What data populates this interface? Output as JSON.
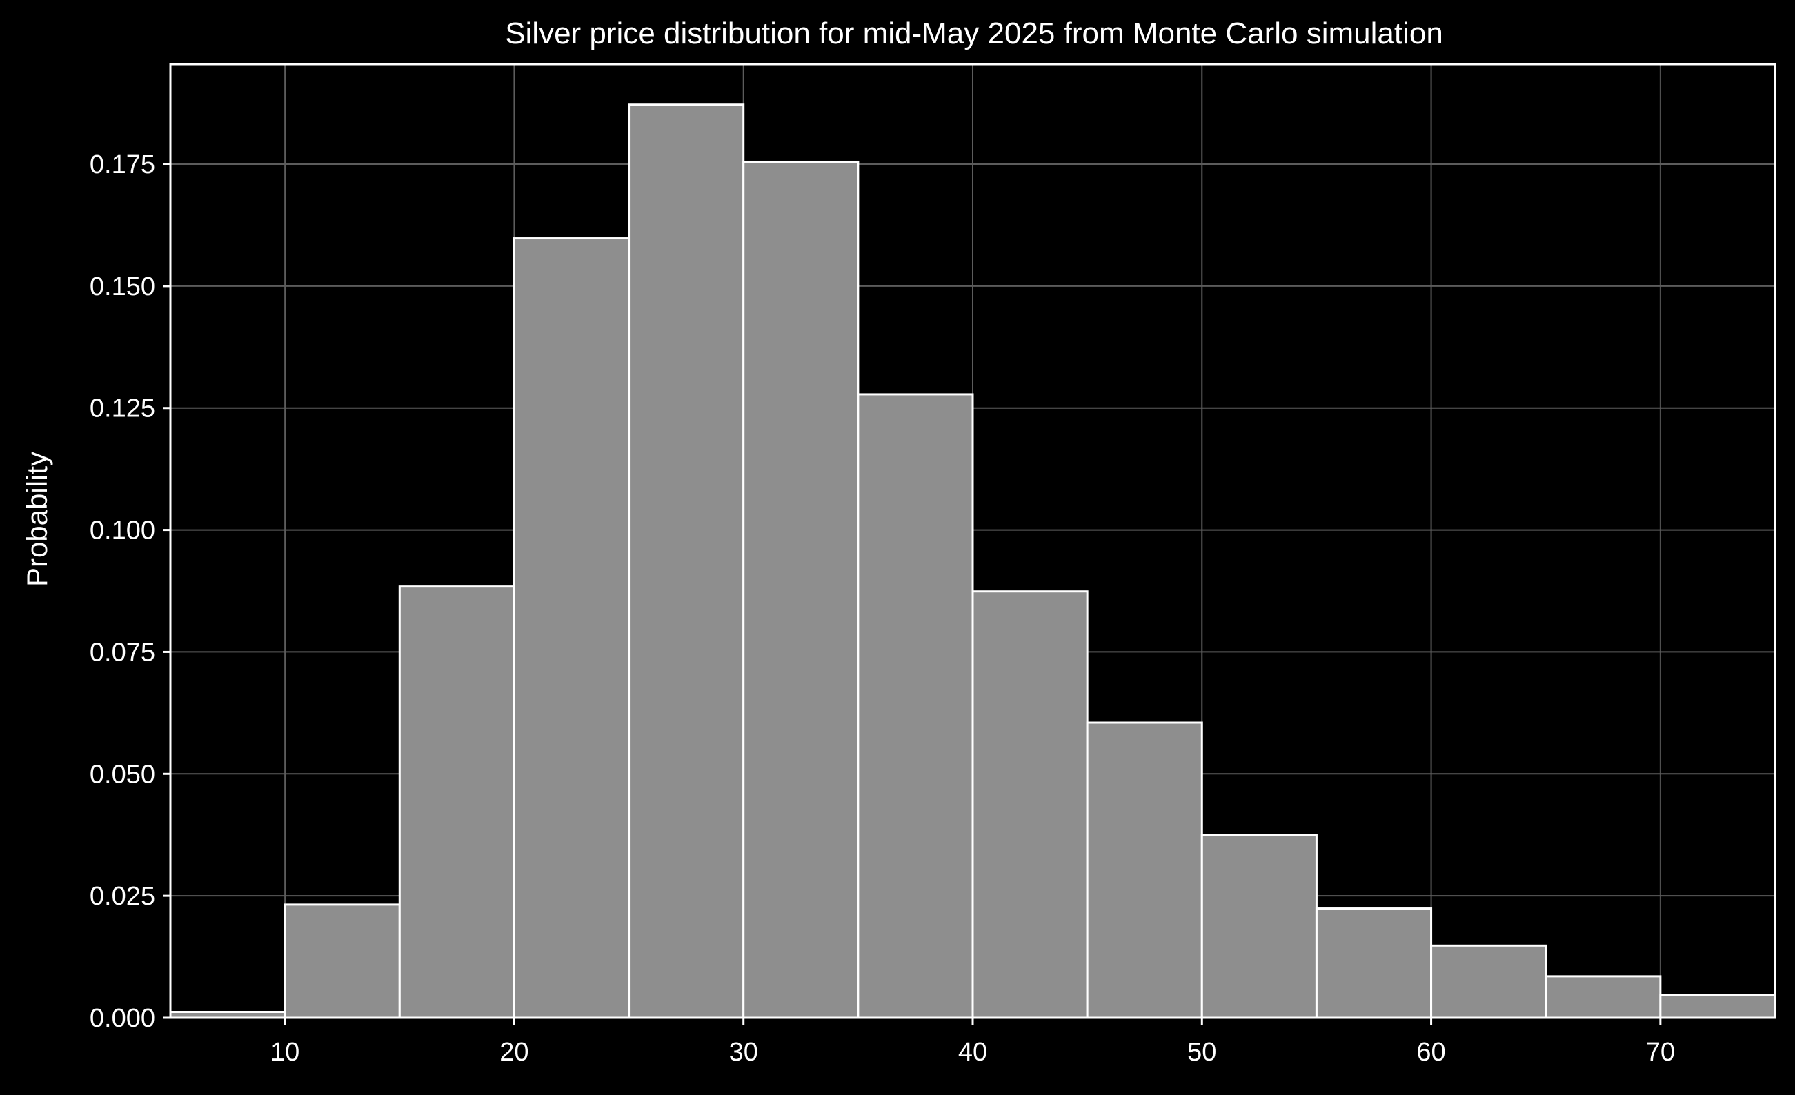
{
  "chart_data": {
    "type": "bar",
    "title": "Silver price distribution for mid-May 2025 from Monte Carlo simulation",
    "xlabel": "",
    "ylabel": "Probability",
    "bin_edges": [
      5,
      10,
      15,
      20,
      25,
      30,
      35,
      40,
      45,
      50,
      55,
      60,
      65,
      70,
      75
    ],
    "values": [
      0.0012,
      0.0232,
      0.0884,
      0.1598,
      0.1872,
      0.1755,
      0.1278,
      0.0874,
      0.0605,
      0.0375,
      0.0224,
      0.0148,
      0.0085,
      0.0046
    ],
    "xlim": [
      5,
      75
    ],
    "ylim": [
      0,
      0.1955
    ],
    "x_ticks": [
      10,
      20,
      30,
      40,
      50,
      60,
      70
    ],
    "x_tick_labels": [
      "10",
      "20",
      "30",
      "40",
      "50",
      "60",
      "70"
    ],
    "y_ticks": [
      0,
      0.025,
      0.05,
      0.075,
      0.1,
      0.125,
      0.15,
      0.175
    ],
    "y_tick_labels": [
      "0.000",
      "0.025",
      "0.050",
      "0.075",
      "0.100",
      "0.125",
      "0.150",
      "0.175"
    ],
    "grid": true,
    "colors": {
      "background": "#000000",
      "bar_fill": "#8e8e8e",
      "bar_edge": "#ffffff",
      "grid": "#5c5c5c",
      "text": "#ffffff"
    }
  }
}
